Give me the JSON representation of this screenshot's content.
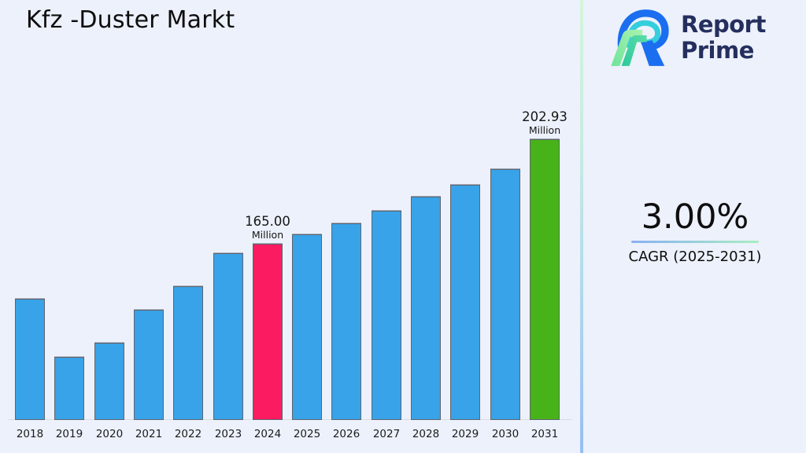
{
  "title": "Kfz -Duster Markt",
  "logo": {
    "line1": "Report",
    "line2": "Prime",
    "icon": "report-prime-rp-mark"
  },
  "cagr": {
    "value": "3.00%",
    "label": "CAGR (2025-2031)"
  },
  "colors": {
    "background": "#ECF1FB",
    "bar_default": "#38A3E8",
    "bar_highlight_pink": "#FB1B60",
    "bar_highlight_green": "#48B219",
    "brand_navy": "#252F5E",
    "divider_gradient": [
      "#D3F5DA",
      "#C6EAE3",
      "#97BDF4"
    ],
    "underline_gradient": [
      "#8AB0F2",
      "#A9EDC1"
    ]
  },
  "chart_data": {
    "type": "bar",
    "title": "Kfz -Duster Markt",
    "unit": "Million",
    "xlabel": "",
    "ylabel": "",
    "grid": false,
    "legend": false,
    "categories": [
      "2018",
      "2019",
      "2020",
      "2021",
      "2022",
      "2023",
      "2024",
      "2025",
      "2026",
      "2027",
      "2028",
      "2029",
      "2030",
      "2031"
    ],
    "values": [
      145,
      124,
      129,
      141,
      149.5,
      161.5,
      165.0,
      168.5,
      172.5,
      177,
      182,
      186.5,
      192,
      202.93
    ],
    "ylim": [
      101,
      225
    ],
    "bar_colors": {
      "default": "#38A3E8",
      "2024": "#FB1B60",
      "2031": "#48B219"
    },
    "annotations": [
      {
        "category": "2024",
        "value_label": "165.00",
        "unit_label": "Million"
      },
      {
        "category": "2031",
        "value_label": "202.93",
        "unit_label": "Million"
      }
    ]
  }
}
